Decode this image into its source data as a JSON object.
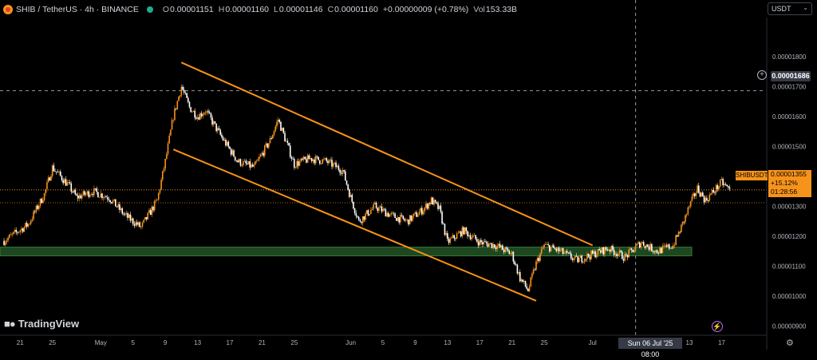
{
  "header": {
    "symbol": "SHIB / TetherUS · 4h · BINANCE",
    "o_label": "O",
    "o_value": "0.00001151",
    "h_label": "H",
    "h_value": "0.00001160",
    "l_label": "L",
    "l_value": "0.00001146",
    "c_label": "C",
    "c_value": "0.00001160",
    "change": "+0.00000009 (+0.78%)",
    "vol_label": "Vol",
    "vol_value": "153.33B"
  },
  "currency": "USDT",
  "crosshair_price": "0.00001686",
  "crosshair_time": "Sun 06 Jul '25  08:00",
  "price_label": {
    "symbol": "SHIBUSDT",
    "price": "0.00001355",
    "change": "+15.12%",
    "countdown": "01:28:56"
  },
  "brand": "TradingView",
  "colors": {
    "background": "#000000",
    "bull": "#f7931a",
    "bear": "#ffffff",
    "channel": "#f7931a",
    "support_zone": "#1e4620"
  },
  "chart_data": {
    "type": "candlestick",
    "y_ticks": [
      "0.00001800",
      "0.00001700",
      "0.00001600",
      "0.00001500",
      "0.00001400",
      "0.00001300",
      "0.00001200",
      "0.00001100",
      "0.00001000",
      "0.00000900"
    ],
    "y_tick_values": [
      1.8e-05,
      1.7e-05,
      1.6e-05,
      1.5e-05,
      1.4e-05,
      1.3e-05,
      1.2e-05,
      1.1e-05,
      1e-05,
      9e-06
    ],
    "x_ticks": [
      "21",
      "25",
      "May",
      "5",
      "9",
      "13",
      "17",
      "21",
      "25",
      "Jun",
      "5",
      "9",
      "13",
      "17",
      "21",
      "25",
      "Jul",
      "13",
      "17"
    ],
    "ylim": [
      8.7e-06,
      1.93e-05
    ],
    "close_path": [
      [
        "2025-04-19",
        1.185e-05
      ],
      [
        "2025-04-22",
        1.24e-05
      ],
      [
        "2025-04-24",
        1.34e-05
      ],
      [
        "2025-04-25",
        1.43e-05
      ],
      [
        "2025-04-27",
        1.37e-05
      ],
      [
        "2025-04-28",
        1.33e-05
      ],
      [
        "2025-04-30",
        1.35e-05
      ],
      [
        "2025-05-02",
        1.33e-05
      ],
      [
        "2025-05-04",
        1.27e-05
      ],
      [
        "2025-05-06",
        1.23e-05
      ],
      [
        "2025-05-08",
        1.32e-05
      ],
      [
        "2025-05-09",
        1.45e-05
      ],
      [
        "2025-05-10",
        1.6e-05
      ],
      [
        "2025-05-11",
        1.7e-05
      ],
      [
        "2025-05-12",
        1.63e-05
      ],
      [
        "2025-05-13",
        1.6e-05
      ],
      [
        "2025-05-14",
        1.62e-05
      ],
      [
        "2025-05-16",
        1.53e-05
      ],
      [
        "2025-05-18",
        1.45e-05
      ],
      [
        "2025-05-20",
        1.43e-05
      ],
      [
        "2025-05-22",
        1.52e-05
      ],
      [
        "2025-05-23",
        1.59e-05
      ],
      [
        "2025-05-25",
        1.44e-05
      ],
      [
        "2025-05-27",
        1.46e-05
      ],
      [
        "2025-05-29",
        1.45e-05
      ],
      [
        "2025-05-31",
        1.42e-05
      ],
      [
        "2025-06-01",
        1.33e-05
      ],
      [
        "2025-06-02",
        1.25e-05
      ],
      [
        "2025-06-04",
        1.3e-05
      ],
      [
        "2025-06-06",
        1.27e-05
      ],
      [
        "2025-06-08",
        1.25e-05
      ],
      [
        "2025-06-10",
        1.29e-05
      ],
      [
        "2025-06-11",
        1.32e-05
      ],
      [
        "2025-06-12",
        1.29e-05
      ],
      [
        "2025-06-13",
        1.18e-05
      ],
      [
        "2025-06-15",
        1.22e-05
      ],
      [
        "2025-06-17",
        1.18e-05
      ],
      [
        "2025-06-19",
        1.17e-05
      ],
      [
        "2025-06-21",
        1.14e-05
      ],
      [
        "2025-06-22",
        1.06e-05
      ],
      [
        "2025-06-23",
        1.02e-05
      ],
      [
        "2025-06-24",
        1.11e-05
      ],
      [
        "2025-06-25",
        1.17e-05
      ],
      [
        "2025-06-27",
        1.15e-05
      ],
      [
        "2025-06-29",
        1.12e-05
      ],
      [
        "2025-07-01",
        1.14e-05
      ],
      [
        "2025-07-03",
        1.16e-05
      ],
      [
        "2025-07-05",
        1.13e-05
      ],
      [
        "2025-07-07",
        1.18e-05
      ],
      [
        "2025-07-09",
        1.15e-05
      ],
      [
        "2025-07-11",
        1.17e-05
      ],
      [
        "2025-07-12",
        1.23e-05
      ],
      [
        "2025-07-13",
        1.3e-05
      ],
      [
        "2025-07-14",
        1.36e-05
      ],
      [
        "2025-07-15",
        1.32e-05
      ],
      [
        "2025-07-16",
        1.35e-05
      ],
      [
        "2025-07-17",
        1.38e-05
      ],
      [
        "2025-07-18",
        1.355e-05
      ]
    ],
    "channel_upper": [
      [
        "2025-05-11",
        1.78e-05
      ],
      [
        "2025-07-01",
        1.17e-05
      ]
    ],
    "channel_lower": [
      [
        "2025-05-10",
        1.49e-05
      ],
      [
        "2025-06-24",
        9.85e-06
      ]
    ],
    "support_zone": [
      1.135e-05,
      1.164e-05
    ],
    "last_price": 1.355e-05,
    "crosshair_price_value": 1.686e-05
  }
}
